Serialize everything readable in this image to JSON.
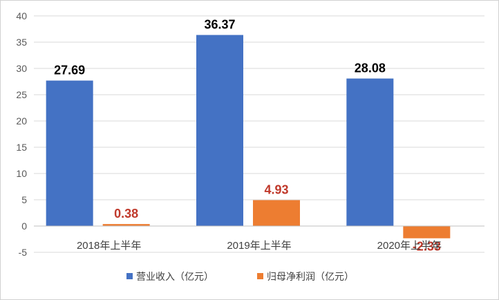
{
  "chart_data": {
    "type": "bar",
    "categories": [
      "2018年上半年",
      "2019年上半年",
      "2020年上半年"
    ],
    "series": [
      {
        "name": "营业收入（亿元）",
        "values": [
          27.69,
          36.37,
          28.08
        ],
        "labels": [
          "27.69",
          "36.37",
          "28.08"
        ],
        "color": "#4472c4",
        "label_color": "#000000"
      },
      {
        "name": "归母净利润（亿元）",
        "values": [
          0.38,
          4.93,
          -2.33
        ],
        "labels": [
          "0.38",
          "4.93",
          "-2.33"
        ],
        "color": "#ed7d31",
        "label_color": "#c0392b"
      }
    ],
    "title": "",
    "xlabel": "",
    "ylabel": "",
    "ylim": [
      -5,
      40
    ],
    "yticks": [
      "-5",
      "0",
      "5",
      "10",
      "15",
      "20",
      "25",
      "30",
      "35",
      "40"
    ],
    "grid": true,
    "legend_position": "bottom"
  }
}
